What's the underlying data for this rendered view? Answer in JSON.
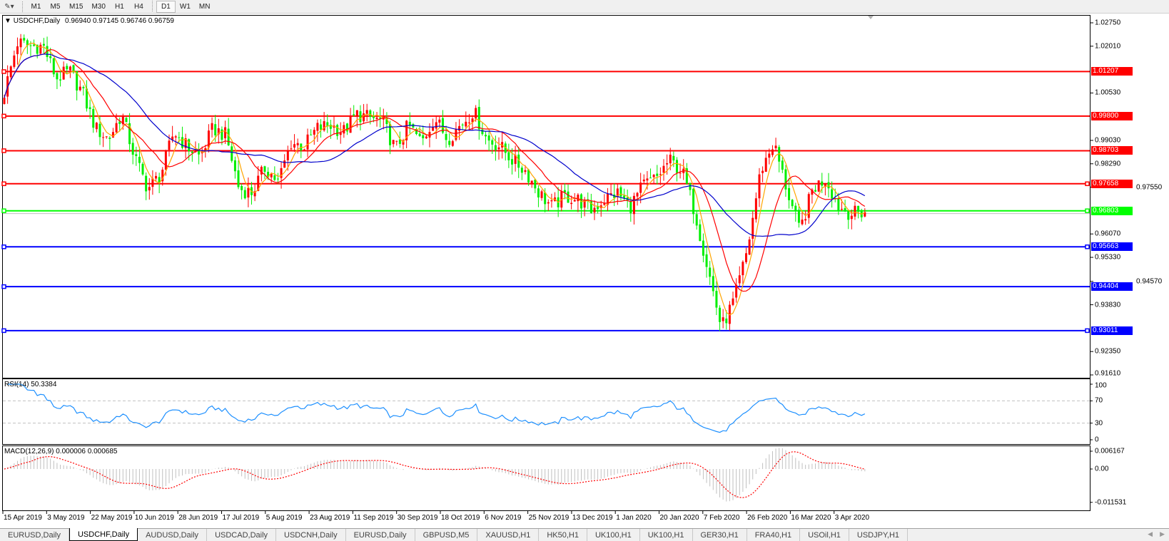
{
  "toolbar": {
    "timeframes": [
      "M1",
      "M5",
      "M15",
      "M30",
      "H1",
      "H4",
      "D1",
      "W1",
      "MN"
    ],
    "active": "D1"
  },
  "chart": {
    "symbol_label": "USDCHF,Daily",
    "ohlc": "0.96940 0.97145 0.96746 0.96759"
  },
  "chart_data": {
    "type": "candlestick",
    "symbol": "USDCHF",
    "timeframe": "Daily",
    "ylim": [
      0.9161,
      1.0275
    ],
    "price_ticks": [
      "1.02750",
      "1.02010",
      "1.00530",
      "0.99030",
      "0.98290",
      "0.97550",
      "0.96070",
      "0.95330",
      "0.94570",
      "0.93830",
      "0.92350",
      "0.91610"
    ],
    "x_tick_labels": [
      "15 Apr 2019",
      "3 May 2019",
      "22 May 2019",
      "10 Jun 2019",
      "28 Jun 2019",
      "17 Jul 2019",
      "5 Aug 2019",
      "23 Aug 2019",
      "11 Sep 2019",
      "30 Sep 2019",
      "18 Oct 2019",
      "6 Nov 2019",
      "25 Nov 2019",
      "13 Dec 2019",
      "1 Jan 2020",
      "20 Jan 2020",
      "7 Feb 2020",
      "26 Feb 2020",
      "16 Mar 2020",
      "3 Apr 2020"
    ],
    "close_path": [
      1.0054,
      1.0212,
      1.0201,
      1.0201,
      1.0099,
      1.0122,
      1.0054,
      0.9941,
      0.9907,
      0.9986,
      0.9851,
      0.975,
      0.9795,
      0.993,
      0.9885,
      0.9851,
      0.9941,
      0.9919,
      0.975,
      0.9738,
      0.9817,
      0.9772,
      0.9896,
      0.9885,
      0.9941,
      0.9952,
      0.993,
      0.9986,
      0.9975,
      0.9964,
      0.9874,
      0.9952,
      0.9896,
      0.9975,
      0.9907,
      0.9952,
      0.9997,
      0.9907,
      0.9885,
      0.984,
      0.9806,
      0.9738,
      0.9693,
      0.9727,
      0.9716,
      0.9682,
      0.9716,
      0.9738,
      0.9693,
      0.9761,
      0.9783,
      0.984,
      0.9806,
      0.9671,
      0.949,
      0.931,
      0.94,
      0.9558,
      0.9806,
      0.9896,
      0.975,
      0.9614,
      0.975,
      0.9783,
      0.9693,
      0.9671,
      0.9676
    ],
    "last_close": 0.96759,
    "candle_colors": {
      "up": "#ff0000",
      "down": "#00ee00"
    },
    "moving_average_colors": [
      "#ffa500",
      "#ff0000",
      "#0000cc"
    ],
    "horizontal_levels": [
      {
        "label": "1.01207",
        "price": 1.01207,
        "color": "#ff0000",
        "markers": false
      },
      {
        "label": "0.99800",
        "price": 0.998,
        "color": "#ff0000",
        "markers": false
      },
      {
        "label": "0.98703",
        "price": 0.98703,
        "color": "#ff0000",
        "markers": false
      },
      {
        "label": "0.97658",
        "price": 0.97658,
        "color": "#ff0000",
        "markers": true
      },
      {
        "label": "0.96803",
        "price": 0.96803,
        "color": "#00ff00",
        "markers": true
      },
      {
        "label": "0.95663",
        "price": 0.95663,
        "color": "#0000ff",
        "markers": true
      },
      {
        "label": "0.94404",
        "price": 0.94404,
        "color": "#0000ff",
        "markers": false
      },
      {
        "label": "0.93011",
        "price": 0.93011,
        "color": "#0000ff",
        "markers": true
      }
    ],
    "rsi": {
      "label": "RSI(14) 50.3384",
      "period": 14,
      "ticks": [
        "100",
        "70",
        "30",
        "0"
      ],
      "levels": [
        70,
        30
      ],
      "color": "#1e90ff"
    },
    "macd": {
      "label": "MACD(12,26,9) 0.000006 0.000685",
      "params": [
        12,
        26,
        9
      ],
      "ticks": [
        "0.006167",
        "0.00",
        "-0.011531"
      ],
      "histogram_color": "#c0c0c0",
      "signal_color": "#ff0000"
    }
  },
  "tabs": [
    {
      "label": "EURUSD,Daily",
      "active": false
    },
    {
      "label": "USDCHF,Daily",
      "active": true
    },
    {
      "label": "AUDUSD,Daily",
      "active": false
    },
    {
      "label": "USDCAD,Daily",
      "active": false
    },
    {
      "label": "USDCNH,Daily",
      "active": false
    },
    {
      "label": "EURUSD,Daily",
      "active": false
    },
    {
      "label": "GBPUSD,M5",
      "active": false
    },
    {
      "label": "XAUUSD,H1",
      "active": false
    },
    {
      "label": "HK50,H1",
      "active": false
    },
    {
      "label": "UK100,H1",
      "active": false
    },
    {
      "label": "UK100,H1",
      "active": false
    },
    {
      "label": "GER30,H1",
      "active": false
    },
    {
      "label": "FRA40,H1",
      "active": false
    },
    {
      "label": "USOil,H1",
      "active": false
    },
    {
      "label": "USDJPY,H1",
      "active": false
    }
  ]
}
